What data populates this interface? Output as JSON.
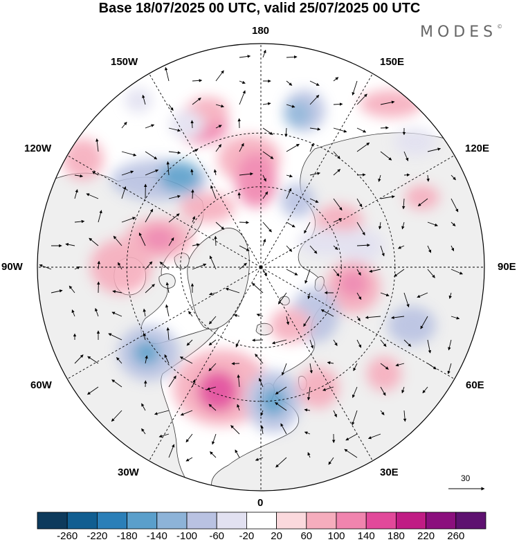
{
  "title": "Base 18/07/2025 00 UTC, valid 25/07/2025 00 UTC",
  "brand": {
    "name": "MODES",
    "mark": "©"
  },
  "map": {
    "projection": "north-polar-stereographic",
    "longitude_labels": [
      "180",
      "150E",
      "120E",
      "90E",
      "60E",
      "30E",
      "0",
      "30W",
      "60W",
      "90W",
      "120W",
      "150W"
    ],
    "land_color": "#efefef",
    "ocean_color": "#ffffff"
  },
  "vector_scale": {
    "label": "30"
  },
  "colorbar": {
    "ticks": [
      "-260",
      "-220",
      "-180",
      "-140",
      "-100",
      "-60",
      "-20",
      "20",
      "60",
      "100",
      "140",
      "180",
      "220",
      "260"
    ],
    "colors": [
      "#0d3a5c",
      "#115e91",
      "#2b7fb8",
      "#5a9fcb",
      "#8db3d8",
      "#b9c2e2",
      "#e2e1f1",
      "#ffffff",
      "#fbd9dd",
      "#f6adbd",
      "#f084ae",
      "#e2499a",
      "#c01c84",
      "#8b0f7d",
      "#5e1170"
    ]
  }
}
